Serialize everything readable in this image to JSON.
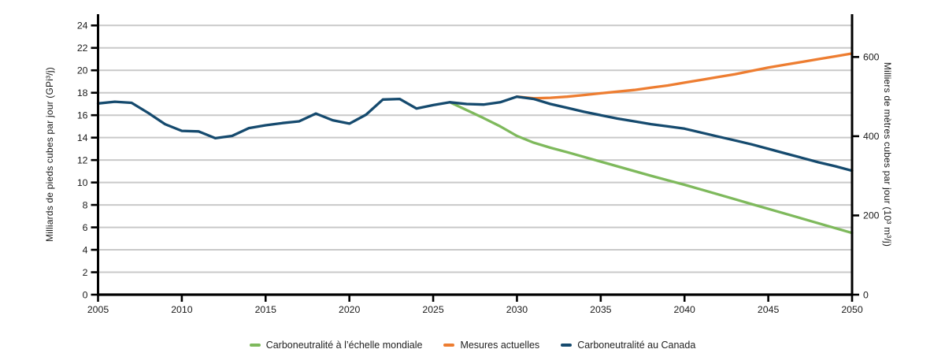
{
  "chart_data": {
    "type": "line",
    "title": "",
    "x_range": [
      2005,
      2050
    ],
    "x_ticks": [
      2005,
      2010,
      2015,
      2020,
      2025,
      2030,
      2035,
      2040,
      2045,
      2050
    ],
    "left_axis": {
      "label": "Milliards de pieds cubes par jour  (GPi³/j)",
      "max": 24,
      "ticks": [
        0,
        2,
        4,
        6,
        8,
        10,
        12,
        14,
        16,
        18,
        20,
        22,
        24
      ]
    },
    "right_axis": {
      "label": "Milliers de mètres cubes par jour  (10³ m³/j)",
      "ticks": [
        0,
        200,
        400,
        600
      ],
      "unit_conversion": 28.316
    },
    "grid": true,
    "legend_position": "bottom",
    "series": [
      {
        "name": "Carboneutralité à l’échelle mondiale",
        "color": "#7eb95c",
        "start_year": 2026,
        "values": [
          17.15,
          16.45,
          15.75,
          15.0,
          14.15,
          13.55,
          13.1,
          12.7,
          12.28,
          11.86,
          11.44,
          11.02,
          10.6,
          10.2,
          9.8,
          9.37,
          8.94,
          8.51,
          8.08,
          7.65,
          7.22,
          6.79,
          6.36,
          5.93,
          5.5
        ]
      },
      {
        "name": "Mesures actuelles",
        "color": "#ed7d31",
        "start_year": 2030,
        "values": [
          17.65,
          17.5,
          17.55,
          17.65,
          17.8,
          17.95,
          18.1,
          18.25,
          18.45,
          18.65,
          18.9,
          19.15,
          19.4,
          19.65,
          19.95,
          20.25,
          20.5,
          20.75,
          21.0,
          21.25,
          21.5
        ]
      },
      {
        "name": "Carboneutralité au Canada",
        "color": "#154a6e",
        "start_year": 2005,
        "values": [
          17.05,
          17.2,
          17.1,
          16.2,
          15.2,
          14.6,
          14.55,
          13.95,
          14.15,
          14.85,
          15.1,
          15.3,
          15.45,
          16.15,
          15.55,
          15.25,
          16.05,
          17.4,
          17.45,
          16.6,
          16.9,
          17.15,
          17.0,
          16.95,
          17.15,
          17.65,
          17.45,
          17.0,
          16.65,
          16.3,
          16.0,
          15.7,
          15.45,
          15.2,
          15.0,
          14.8,
          14.45,
          14.1,
          13.75,
          13.4,
          13.0,
          12.6,
          12.2,
          11.8,
          11.45,
          11.05
        ]
      }
    ]
  },
  "colors": {
    "gridline": "#c9c9c9",
    "axis": "#000000",
    "tick_text": "#1a1a1a",
    "background": "#ffffff"
  }
}
